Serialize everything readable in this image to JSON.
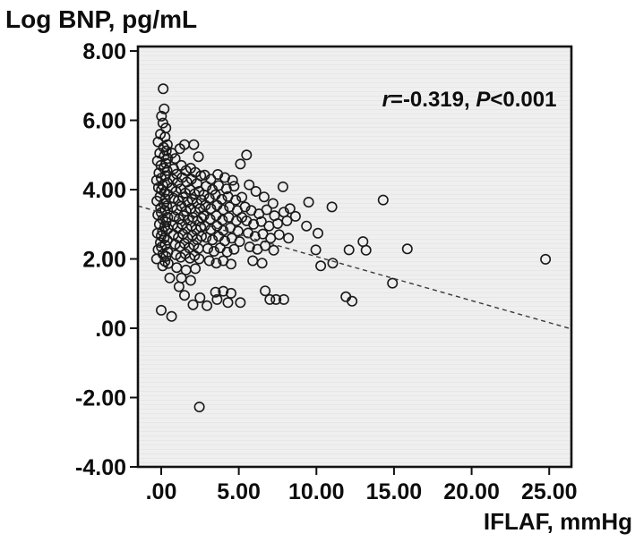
{
  "figure": {
    "y_axis_title": "Log BNP, pg/mL",
    "x_axis_title": "IFLAF, mmHg",
    "annotation": {
      "r_symbol": "r",
      "r_rest": "=-0.319, ",
      "p_symbol": "P",
      "p_rest": "<0.001"
    }
  },
  "colors": {
    "plot_background": "#efefef",
    "plot_background_stripe": "#e7e7e7",
    "frame_stroke": "#111111",
    "marker_stroke": "#1a1a1a",
    "trend_stroke": "#3a3a3a",
    "text": "#0d0d0d"
  },
  "chart_data": {
    "type": "scatter",
    "title": "",
    "xlabel": "IFLAF, mmHg",
    "ylabel": "Log BNP, pg/mL",
    "xlim": [
      -1.5,
      26.43
    ],
    "ylim": [
      -4,
      8.13
    ],
    "grid": false,
    "legend": "none",
    "x_tick_labels": [
      ".00",
      "5.00",
      "10.00",
      "15.00",
      "20.00",
      "25.00"
    ],
    "x_tick_values": [
      0,
      5,
      10,
      15,
      20,
      25
    ],
    "y_tick_labels": [
      "8.00",
      "6.00",
      "4.00",
      "2.00",
      ".00",
      "-2.00",
      "-4.00"
    ],
    "y_tick_values": [
      8,
      6,
      4,
      2,
      0,
      -2,
      -4
    ],
    "annotation": "r=-0.319, P<0.001",
    "trend_line": {
      "style": "dashed",
      "x1": -1.5,
      "y1": 3.53,
      "x2": 26.43,
      "y2": -0.02
    },
    "marker": {
      "shape": "open-circle",
      "radius_px": 5.2
    },
    "points": [
      [
        0.13,
        6.91
      ],
      [
        0.19,
        6.33
      ],
      [
        0.02,
        6.12
      ],
      [
        0.11,
        5.92
      ],
      [
        0.3,
        5.78
      ],
      [
        -0.05,
        5.6
      ],
      [
        0.25,
        5.52
      ],
      [
        -0.2,
        5.38
      ],
      [
        0.4,
        5.3
      ],
      [
        0.15,
        5.22
      ],
      [
        0.33,
        5.12
      ],
      [
        -0.1,
        5.05
      ],
      [
        0.2,
        4.98
      ],
      [
        0.42,
        4.9
      ],
      [
        -0.25,
        4.83
      ],
      [
        0.3,
        4.76
      ],
      [
        -0.02,
        4.7
      ],
      [
        0.18,
        4.62
      ],
      [
        0.38,
        4.55
      ],
      [
        -0.15,
        4.48
      ],
      [
        0.27,
        4.4
      ],
      [
        0.0,
        4.33
      ],
      [
        -0.3,
        4.27
      ],
      [
        0.4,
        4.2
      ],
      [
        0.1,
        4.13
      ],
      [
        -0.18,
        4.06
      ],
      [
        0.02,
        4.0
      ],
      [
        0.22,
        3.93
      ],
      [
        0.44,
        3.86
      ],
      [
        -0.08,
        3.8
      ],
      [
        0.28,
        3.73
      ],
      [
        -0.28,
        3.67
      ],
      [
        0.17,
        3.6
      ],
      [
        0.36,
        3.53
      ],
      [
        -0.04,
        3.47
      ],
      [
        0.25,
        3.4
      ],
      [
        0.0,
        3.34
      ],
      [
        -0.22,
        3.27
      ],
      [
        0.42,
        3.2
      ],
      [
        0.1,
        3.14
      ],
      [
        0.32,
        3.07
      ],
      [
        -0.12,
        3.0
      ],
      [
        0.23,
        2.94
      ],
      [
        0.44,
        2.87
      ],
      [
        0.08,
        2.8
      ],
      [
        -0.25,
        2.74
      ],
      [
        0.0,
        2.67
      ],
      [
        0.19,
        2.6
      ],
      [
        0.39,
        2.54
      ],
      [
        -0.06,
        2.47
      ],
      [
        0.26,
        2.4
      ],
      [
        0.01,
        2.34
      ],
      [
        -0.2,
        2.27
      ],
      [
        0.43,
        2.2
      ],
      [
        0.11,
        2.14
      ],
      [
        0.31,
        2.07
      ],
      [
        -0.3,
        2.0
      ],
      [
        0.24,
        1.93
      ],
      [
        0.45,
        1.87
      ],
      [
        0.09,
        1.8
      ],
      [
        0.0,
        0.52
      ],
      [
        0.67,
        0.34
      ],
      [
        0.7,
        5.05
      ],
      [
        0.9,
        4.9
      ],
      [
        1.2,
        5.18
      ],
      [
        1.5,
        5.3
      ],
      [
        2.1,
        5.3
      ],
      [
        2.4,
        4.95
      ],
      [
        0.8,
        4.6
      ],
      [
        1.0,
        4.45
      ],
      [
        1.3,
        4.7
      ],
      [
        1.6,
        4.55
      ],
      [
        1.9,
        4.62
      ],
      [
        2.2,
        4.5
      ],
      [
        0.75,
        4.3
      ],
      [
        1.05,
        4.2
      ],
      [
        1.35,
        4.35
      ],
      [
        1.65,
        4.22
      ],
      [
        1.95,
        4.3
      ],
      [
        2.3,
        4.18
      ],
      [
        2.55,
        4.4
      ],
      [
        0.7,
        4.05
      ],
      [
        0.95,
        3.95
      ],
      [
        1.25,
        4.02
      ],
      [
        1.55,
        3.9
      ],
      [
        1.85,
        4.0
      ],
      [
        2.15,
        3.88
      ],
      [
        2.45,
        3.95
      ],
      [
        0.8,
        3.75
      ],
      [
        1.1,
        3.68
      ],
      [
        1.4,
        3.78
      ],
      [
        1.7,
        3.65
      ],
      [
        2.0,
        3.72
      ],
      [
        2.3,
        3.6
      ],
      [
        2.6,
        3.7
      ],
      [
        0.72,
        3.5
      ],
      [
        1.0,
        3.42
      ],
      [
        1.3,
        3.52
      ],
      [
        1.6,
        3.38
      ],
      [
        1.9,
        3.45
      ],
      [
        2.2,
        3.35
      ],
      [
        2.5,
        3.45
      ],
      [
        0.85,
        3.22
      ],
      [
        1.15,
        3.15
      ],
      [
        1.45,
        3.25
      ],
      [
        1.75,
        3.12
      ],
      [
        2.05,
        3.2
      ],
      [
        2.35,
        3.1
      ],
      [
        2.62,
        3.18
      ],
      [
        0.75,
        2.98
      ],
      [
        1.05,
        2.9
      ],
      [
        1.35,
        3.0
      ],
      [
        1.65,
        2.88
      ],
      [
        1.95,
        2.95
      ],
      [
        2.25,
        2.85
      ],
      [
        2.55,
        2.92
      ],
      [
        0.8,
        2.7
      ],
      [
        1.1,
        2.62
      ],
      [
        1.4,
        2.72
      ],
      [
        1.7,
        2.6
      ],
      [
        2.0,
        2.68
      ],
      [
        2.3,
        2.56
      ],
      [
        2.6,
        2.65
      ],
      [
        0.9,
        2.42
      ],
      [
        1.2,
        2.35
      ],
      [
        1.5,
        2.45
      ],
      [
        1.8,
        2.32
      ],
      [
        2.1,
        2.4
      ],
      [
        2.4,
        2.3
      ],
      [
        0.95,
        2.12
      ],
      [
        1.25,
        2.05
      ],
      [
        1.55,
        2.15
      ],
      [
        1.85,
        2.02
      ],
      [
        2.15,
        2.1
      ],
      [
        2.45,
        2.0
      ],
      [
        1.0,
        1.75
      ],
      [
        1.6,
        1.68
      ],
      [
        2.2,
        1.72
      ],
      [
        1.3,
        1.45
      ],
      [
        1.9,
        1.38
      ],
      [
        1.15,
        1.2
      ],
      [
        2.8,
        4.42
      ],
      [
        3.2,
        4.3
      ],
      [
        3.65,
        4.44
      ],
      [
        4.1,
        4.35
      ],
      [
        4.6,
        4.27
      ],
      [
        5.1,
        4.74
      ],
      [
        2.9,
        4.1
      ],
      [
        3.3,
        4.0
      ],
      [
        3.7,
        4.12
      ],
      [
        4.2,
        4.02
      ],
      [
        4.7,
        4.1
      ],
      [
        2.75,
        3.85
      ],
      [
        3.1,
        3.75
      ],
      [
        3.5,
        3.85
      ],
      [
        3.9,
        3.72
      ],
      [
        4.3,
        3.8
      ],
      [
        4.8,
        3.7
      ],
      [
        5.2,
        3.78
      ],
      [
        2.85,
        3.55
      ],
      [
        3.2,
        3.45
      ],
      [
        3.6,
        3.55
      ],
      [
        4.0,
        3.42
      ],
      [
        4.4,
        3.5
      ],
      [
        4.9,
        3.4
      ],
      [
        2.75,
        3.25
      ],
      [
        3.15,
        3.15
      ],
      [
        3.55,
        3.25
      ],
      [
        3.95,
        3.12
      ],
      [
        4.35,
        3.2
      ],
      [
        4.85,
        3.1
      ],
      [
        5.2,
        3.2
      ],
      [
        2.8,
        2.95
      ],
      [
        3.2,
        2.85
      ],
      [
        3.6,
        2.95
      ],
      [
        4.0,
        2.82
      ],
      [
        4.45,
        2.9
      ],
      [
        4.95,
        2.8
      ],
      [
        2.9,
        2.62
      ],
      [
        3.3,
        2.55
      ],
      [
        3.7,
        2.65
      ],
      [
        4.1,
        2.52
      ],
      [
        4.55,
        2.6
      ],
      [
        5.05,
        2.5
      ],
      [
        3.0,
        2.3
      ],
      [
        3.4,
        2.22
      ],
      [
        3.8,
        2.32
      ],
      [
        4.25,
        2.2
      ],
      [
        4.7,
        2.28
      ],
      [
        3.1,
        1.95
      ],
      [
        3.55,
        1.88
      ],
      [
        4.0,
        1.95
      ],
      [
        4.5,
        1.85
      ],
      [
        3.5,
        1.04
      ],
      [
        4.0,
        1.07
      ],
      [
        4.5,
        1.01
      ],
      [
        3.6,
        0.83
      ],
      [
        4.3,
        0.74
      ],
      [
        5.1,
        0.74
      ],
      [
        5.5,
        5.0
      ],
      [
        5.67,
        4.14
      ],
      [
        6.1,
        3.95
      ],
      [
        6.63,
        3.79
      ],
      [
        7.2,
        3.6
      ],
      [
        7.84,
        4.08
      ],
      [
        5.4,
        3.5
      ],
      [
        5.8,
        3.4
      ],
      [
        6.3,
        3.3
      ],
      [
        6.8,
        3.42
      ],
      [
        7.3,
        3.25
      ],
      [
        7.9,
        3.35
      ],
      [
        8.3,
        3.45
      ],
      [
        5.5,
        3.1
      ],
      [
        5.95,
        3.0
      ],
      [
        6.45,
        3.08
      ],
      [
        6.95,
        2.95
      ],
      [
        7.5,
        3.02
      ],
      [
        8.1,
        3.1
      ],
      [
        5.6,
        2.75
      ],
      [
        6.05,
        2.65
      ],
      [
        6.55,
        2.72
      ],
      [
        7.05,
        2.6
      ],
      [
        7.6,
        2.7
      ],
      [
        8.2,
        2.6
      ],
      [
        5.7,
        2.35
      ],
      [
        6.2,
        2.28
      ],
      [
        6.7,
        2.38
      ],
      [
        7.25,
        2.25
      ],
      [
        5.9,
        1.95
      ],
      [
        6.5,
        1.88
      ],
      [
        6.7,
        1.08
      ],
      [
        7.0,
        0.83
      ],
      [
        7.4,
        0.83
      ],
      [
        7.9,
        0.83
      ],
      [
        8.65,
        3.23
      ],
      [
        9.36,
        2.95
      ],
      [
        9.5,
        3.64
      ],
      [
        9.96,
        2.26
      ],
      [
        10.1,
        2.74
      ],
      [
        10.28,
        1.8
      ],
      [
        11.0,
        3.5
      ],
      [
        11.05,
        1.88
      ],
      [
        11.9,
        0.91
      ],
      [
        12.1,
        2.26
      ],
      [
        12.3,
        0.78
      ],
      [
        13.0,
        2.5
      ],
      [
        13.2,
        2.25
      ],
      [
        14.3,
        3.7
      ],
      [
        14.9,
        1.3
      ],
      [
        15.86,
        2.29
      ],
      [
        24.76,
        1.99
      ],
      [
        2.46,
        -2.27
      ],
      [
        1.5,
        0.95
      ],
      [
        2.05,
        0.68
      ],
      [
        2.5,
        0.88
      ],
      [
        2.95,
        0.65
      ],
      [
        0.55,
        1.45
      ]
    ]
  }
}
